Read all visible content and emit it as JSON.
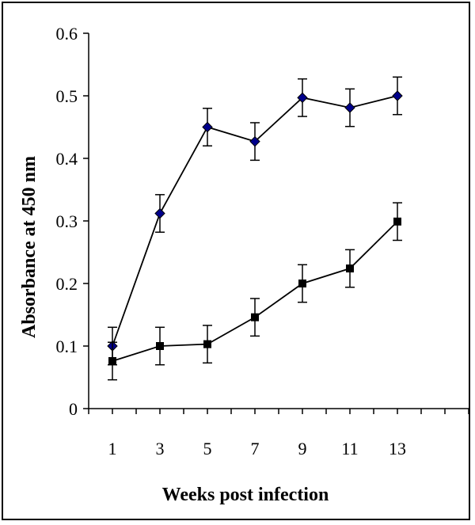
{
  "chart_data": {
    "type": "line",
    "title": "",
    "xlabel": "Weeks post infection",
    "ylabel": "Absorbance at 450 nm",
    "x": [
      1,
      3,
      5,
      7,
      9,
      11,
      13
    ],
    "xlim": [
      0,
      16
    ],
    "ylim": [
      0,
      0.6
    ],
    "yticks": [
      "0",
      "0.1",
      "0.2",
      "0.3",
      "0.4",
      "0.5",
      "0.6"
    ],
    "xticks": [
      "1",
      "3",
      "5",
      "7",
      "9",
      "11",
      "13"
    ],
    "grid": false,
    "legend": "none",
    "error_bar": 0.03,
    "series": [
      {
        "marker": "diamond",
        "color": "#00008B",
        "values": [
          0.1,
          0.312,
          0.45,
          0.427,
          0.497,
          0.481,
          0.5
        ]
      },
      {
        "marker": "square",
        "color": "#000000",
        "values": [
          0.076,
          0.1,
          0.103,
          0.146,
          0.2,
          0.224,
          0.299
        ]
      }
    ]
  }
}
